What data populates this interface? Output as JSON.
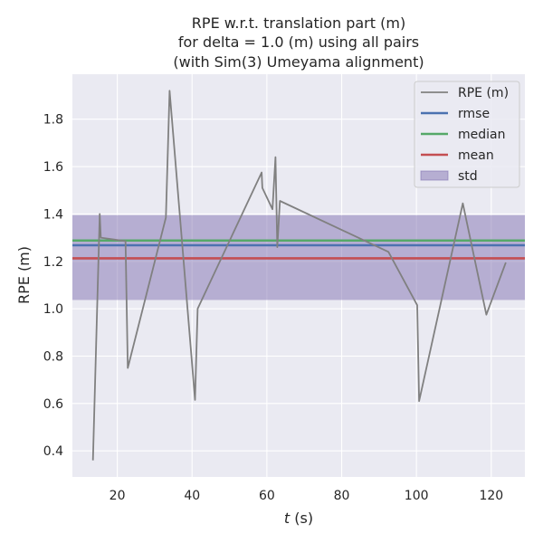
{
  "chart_data": {
    "type": "line",
    "title_lines": [
      "RPE w.r.t. translation part (m)",
      "for delta = 1.0 (m) using all pairs",
      "(with Sim(3) Umeyama alignment)"
    ],
    "xlabel_italic": "t",
    "xlabel_rest": " (s)",
    "ylabel": "RPE (m)",
    "xlim": [
      8,
      129
    ],
    "ylim": [
      0.29,
      1.99
    ],
    "xticks": [
      20,
      40,
      60,
      80,
      100,
      120
    ],
    "xtick_labels": [
      "20",
      "40",
      "60",
      "80",
      "100",
      "120"
    ],
    "yticks": [
      0.4,
      0.6,
      0.8,
      1.0,
      1.2,
      1.4,
      1.6,
      1.8
    ],
    "ytick_labels": [
      "0.4",
      "0.6",
      "0.8",
      "1.0",
      "1.2",
      "1.4",
      "1.6",
      "1.8"
    ],
    "grid": true,
    "legend_position": "top-right",
    "series": [
      {
        "name": "RPE (m)",
        "color": "#808080",
        "x": [
          13.5,
          15.3,
          15.6,
          22.2,
          22.8,
          33.0,
          34.0,
          40.8,
          41.5,
          58.6,
          58.8,
          61.5,
          62.3,
          62.8,
          63.5,
          92.5,
          100.2,
          100.7,
          112.4,
          118.7,
          123.9
        ],
        "y": [
          0.36,
          1.4,
          1.3,
          1.285,
          0.75,
          1.385,
          1.92,
          0.615,
          1.0,
          1.575,
          1.51,
          1.42,
          1.64,
          1.26,
          1.455,
          1.24,
          1.015,
          0.61,
          1.445,
          0.975,
          1.195
        ]
      }
    ],
    "stats": {
      "rmse": 1.268,
      "median": 1.288,
      "mean": 1.213,
      "std_low": 1.037,
      "std_high": 1.395
    },
    "legend": [
      {
        "label": "RPE (m)",
        "kind": "line",
        "color": "#808080"
      },
      {
        "label": "rmse",
        "kind": "line",
        "color": "#4c72b0"
      },
      {
        "label": "median",
        "kind": "line",
        "color": "#55a868"
      },
      {
        "label": "mean",
        "kind": "line",
        "color": "#c44e52"
      },
      {
        "label": "std",
        "kind": "patch",
        "color": "#8172b2"
      }
    ],
    "colors": {
      "background": "#eaeaf2",
      "grid": "#ffffff",
      "rmse": "#4c72b0",
      "median": "#55a868",
      "mean": "#c44e52",
      "std_fill": "#8172b2"
    }
  }
}
